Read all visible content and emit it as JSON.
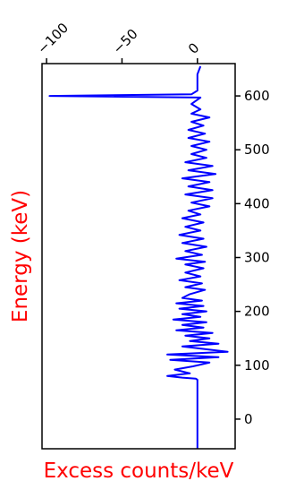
{
  "chart_data": {
    "type": "line",
    "title": "",
    "xlabel": "Excess counts/keV",
    "ylabel": "Energy (keV)",
    "label_color": "#ff0000",
    "line_color": "#0000ff",
    "xlim": [
      -103,
      25
    ],
    "ylim": [
      -55,
      660
    ],
    "x_ticks": [
      -100,
      -50,
      0
    ],
    "x_tick_labels": [
      "−100",
      "−50",
      "0"
    ],
    "y_ticks": [
      0,
      100,
      200,
      300,
      400,
      500,
      600
    ],
    "y_tick_labels": [
      "0",
      "100",
      "200",
      "300",
      "400",
      "500",
      "600"
    ],
    "x_ticks_position": "top",
    "y_ticks_position": "right",
    "grid": false,
    "series": [
      {
        "color": "#0000ff",
        "x": [
          0,
          0,
          0,
          0,
          -1,
          -10,
          -20,
          -5,
          -15,
          -3,
          8,
          -18,
          14,
          -20,
          20,
          5,
          -10,
          14,
          -5,
          8,
          -8,
          10,
          -14,
          4,
          -10,
          6,
          -16,
          2,
          -10,
          6,
          -12,
          4,
          -14,
          3,
          -10,
          -5,
          5,
          -8,
          3,
          -12,
          2,
          -8,
          4,
          -8,
          5,
          -14,
          3,
          -8,
          6,
          -10,
          4,
          -12,
          2,
          -8,
          4,
          -10,
          2,
          -6,
          8,
          -4,
          10,
          -8,
          10,
          -6,
          8,
          -10,
          12,
          -6,
          10,
          -8,
          6,
          -4,
          6,
          -4,
          8,
          -6,
          5,
          -6,
          4,
          -4,
          8,
          -4,
          2,
          -4,
          2,
          -98,
          -4,
          0,
          0,
          0,
          2
        ],
        "y": [
          -55,
          0,
          50,
          73,
          75,
          77,
          80,
          85,
          92,
          98,
          105,
          110,
          115,
          120,
          125,
          130,
          135,
          140,
          145,
          150,
          155,
          160,
          165,
          170,
          175,
          180,
          185,
          190,
          195,
          200,
          205,
          210,
          215,
          220,
          225,
          232,
          240,
          245,
          252,
          258,
          265,
          272,
          280,
          287,
          292,
          298,
          305,
          312,
          320,
          327,
          335,
          342,
          350,
          357,
          365,
          373,
          380,
          387,
          395,
          402,
          410,
          417,
          425,
          432,
          440,
          447,
          455,
          462,
          470,
          477,
          485,
          492,
          500,
          507,
          515,
          522,
          530,
          537,
          545,
          552,
          560,
          567,
          575,
          585,
          597,
          600,
          603,
          610,
          620,
          640,
          655
        ]
      }
    ]
  }
}
